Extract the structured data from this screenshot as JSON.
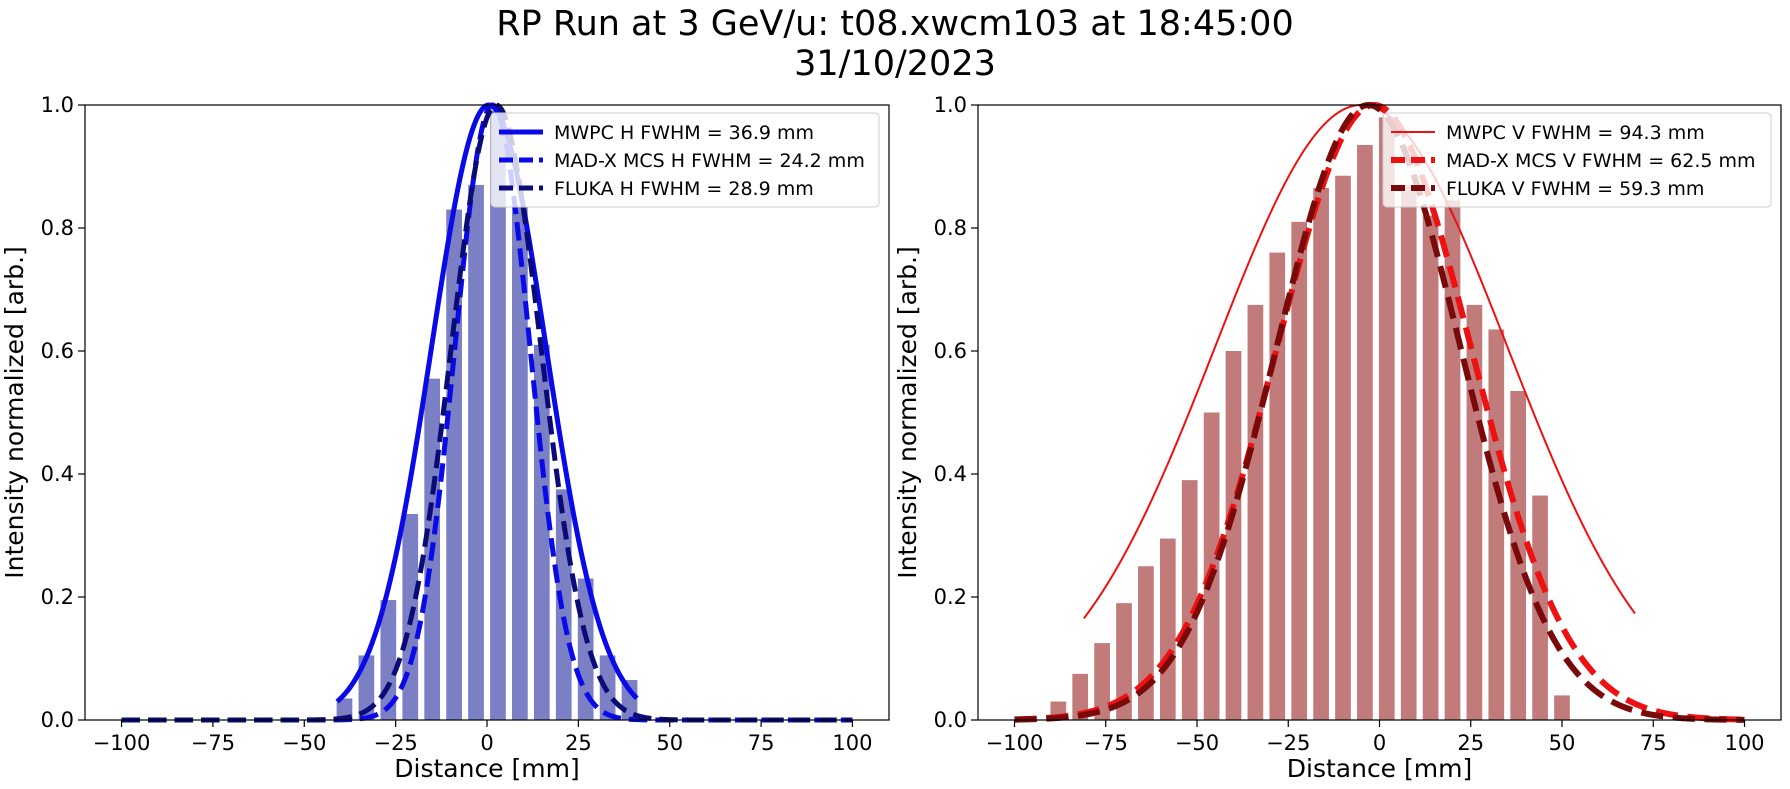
{
  "figure": {
    "title_line1": "RP Run at 3 GeV/u: t08.xwcm103 at 18:45:00",
    "title_line2": "31/10/2023"
  },
  "chart_data": [
    {
      "type": "bar",
      "xlabel": "Distance [mm]",
      "ylabel": "Intensity normalized [arb.]",
      "xlim": [
        -110,
        110
      ],
      "ylim": [
        0,
        1.0
      ],
      "xticks": [
        -100,
        -75,
        -50,
        -25,
        0,
        25,
        50,
        75,
        100
      ],
      "yticks": [
        0.0,
        0.2,
        0.4,
        0.6,
        0.8,
        1.0
      ],
      "grid": false,
      "legend_position": "top-right",
      "bar_color": "#7b7fc4",
      "bar_width": 4.3,
      "bars": {
        "x": [
          -39,
          -33,
          -27,
          -21,
          -15,
          -9,
          -3,
          3,
          9,
          15,
          21,
          27,
          33,
          39
        ],
        "y": [
          0.035,
          0.105,
          0.195,
          0.335,
          0.555,
          0.83,
          0.87,
          0.99,
          0.835,
          0.61,
          0.375,
          0.23,
          0.105,
          0.065
        ]
      },
      "series": [
        {
          "name": "MWPC H FWHM = 36.9 mm",
          "kind": "gaussian",
          "mean": 0.5,
          "fwhm": 36.9,
          "color": "#0a0ae8",
          "style": "solid",
          "width": 5,
          "domain": [
            -41,
            41
          ]
        },
        {
          "name": "MAD-X MCS H FWHM = 24.2 mm",
          "kind": "gaussian",
          "mean": 1.5,
          "fwhm": 24.2,
          "color": "#0a0ae8",
          "style": "dashed",
          "width": 5,
          "domain": [
            -100,
            100
          ]
        },
        {
          "name": "FLUKA H FWHM = 28.9 mm",
          "kind": "gaussian",
          "mean": 2.5,
          "fwhm": 28.9,
          "color": "#0b0b78",
          "style": "dashed",
          "width": 5,
          "domain": [
            -100,
            100
          ]
        }
      ]
    },
    {
      "type": "bar",
      "xlabel": "Distance [mm]",
      "ylabel": "Intensity normalized [arb.]",
      "xlim": [
        -110,
        110
      ],
      "ylim": [
        0,
        1.0
      ],
      "xticks": [
        -100,
        -75,
        -50,
        -25,
        0,
        25,
        50,
        75,
        100
      ],
      "yticks": [
        0.0,
        0.2,
        0.4,
        0.6,
        0.8,
        1.0
      ],
      "grid": false,
      "legend_position": "top-right",
      "bar_color": "#c17b7b",
      "bar_width": 4.3,
      "bars": {
        "x": [
          -88,
          -82,
          -76,
          -70,
          -64,
          -58,
          -52,
          -46,
          -40,
          -34,
          -28,
          -22,
          -16,
          -10,
          -4,
          2,
          8,
          14,
          20,
          26,
          32,
          38,
          44,
          50,
          56
        ],
        "y": [
          0.03,
          0.075,
          0.125,
          0.19,
          0.25,
          0.295,
          0.39,
          0.5,
          0.6,
          0.675,
          0.76,
          0.81,
          0.865,
          0.885,
          0.935,
          0.98,
          0.87,
          0.82,
          0.845,
          0.675,
          0.635,
          0.535,
          0.365,
          0.04,
          0.0
        ]
      },
      "series": [
        {
          "name": "MWPC V FWHM = 94.3 mm",
          "kind": "gaussian",
          "mean": -5,
          "fwhm": 94.3,
          "color": "#ee1111",
          "style": "solid",
          "width": 2,
          "domain": [
            -81,
            70
          ]
        },
        {
          "name": "MAD-X MCS V FWHM = 62.5 mm",
          "kind": "gaussian",
          "mean": -1.5,
          "fwhm": 62.5,
          "color": "#ee1111",
          "style": "dashed",
          "width": 6,
          "domain": [
            -100,
            100
          ]
        },
        {
          "name": "FLUKA V FWHM = 59.3 mm",
          "kind": "gaussian",
          "mean": -3,
          "fwhm": 59.3,
          "color": "#7a0a0a",
          "style": "dashed",
          "width": 6,
          "domain": [
            -100,
            100
          ]
        }
      ]
    }
  ]
}
